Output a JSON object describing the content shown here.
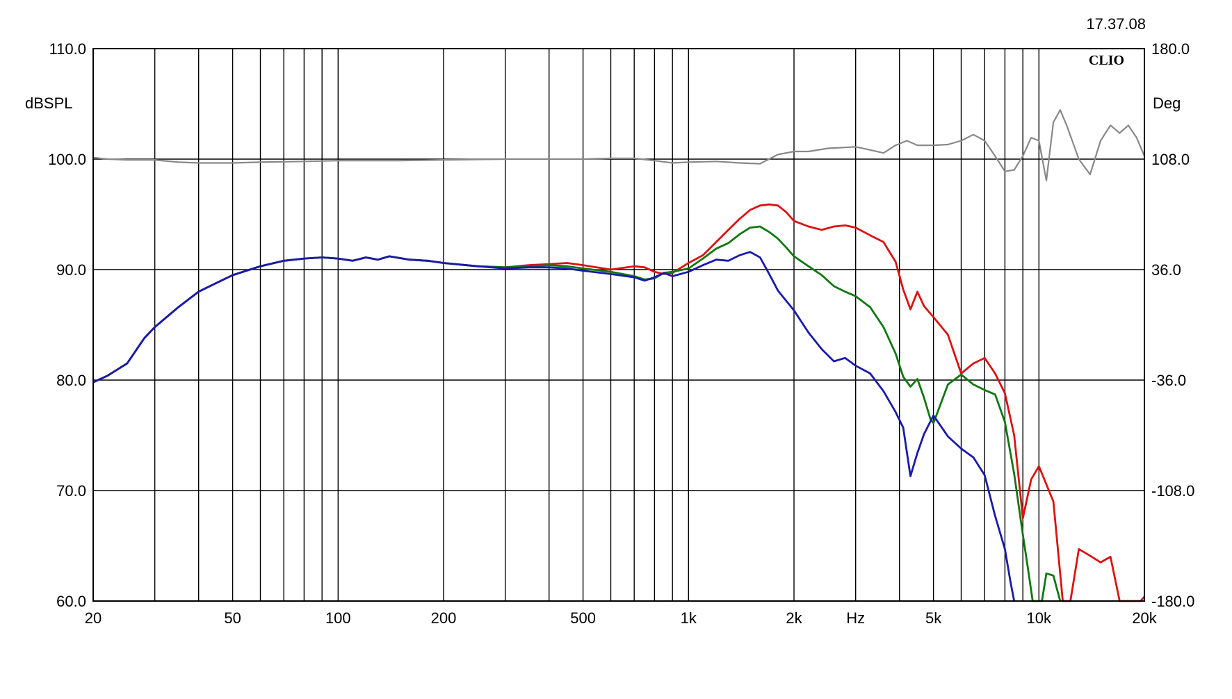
{
  "timestamp": "17.37.08",
  "logo": "CLIO",
  "colors": {
    "background": "#ffffff",
    "grid": "#000000",
    "red": "#dd1111",
    "green": "#117711",
    "blue": "#1a1aaa",
    "phase": "#888888"
  },
  "chart_data": {
    "type": "line",
    "xscale": "log",
    "xlabel": "Hz",
    "ylabel_left": "dBSPL",
    "ylabel_right": "Deg",
    "xlim": [
      20,
      20000
    ],
    "ylim_left": [
      60,
      110
    ],
    "ylim_right": [
      -180,
      180
    ],
    "grid": true,
    "x_ticks": [
      {
        "value": 20,
        "label": "20"
      },
      {
        "value": 50,
        "label": "50"
      },
      {
        "value": 100,
        "label": "100"
      },
      {
        "value": 200,
        "label": "200"
      },
      {
        "value": 500,
        "label": "500"
      },
      {
        "value": 1000,
        "label": "1k"
      },
      {
        "value": 2000,
        "label": "2k"
      },
      {
        "value": 3000,
        "label": "Hz"
      },
      {
        "value": 5000,
        "label": "5k"
      },
      {
        "value": 10000,
        "label": "10k"
      },
      {
        "value": 20000,
        "label": "20k"
      }
    ],
    "x_gridlines": [
      30,
      40,
      50,
      60,
      70,
      80,
      90,
      100,
      200,
      300,
      400,
      500,
      600,
      700,
      800,
      900,
      1000,
      2000,
      3000,
      4000,
      5000,
      6000,
      7000,
      8000,
      9000,
      10000,
      20000
    ],
    "y_ticks_left": [
      "60.0",
      "70.0",
      "80.0",
      "90.0",
      "100.0",
      "110.0"
    ],
    "y_ticks_right": [
      "-180.0",
      "-108.0",
      "-36.0",
      "36.0",
      "108.0",
      "180.0"
    ],
    "series": [
      {
        "color_key": "red",
        "axis": "left",
        "points": [
          [
            20,
            79.8
          ],
          [
            22,
            80.4
          ],
          [
            25,
            81.5
          ],
          [
            28,
            83.8
          ],
          [
            30,
            84.8
          ],
          [
            35,
            86.6
          ],
          [
            40,
            88.0
          ],
          [
            45,
            88.8
          ],
          [
            50,
            89.5
          ],
          [
            60,
            90.3
          ],
          [
            70,
            90.8
          ],
          [
            80,
            91.0
          ],
          [
            90,
            91.1
          ],
          [
            100,
            91.0
          ],
          [
            110,
            90.8
          ],
          [
            120,
            91.1
          ],
          [
            130,
            90.9
          ],
          [
            140,
            91.2
          ],
          [
            160,
            90.9
          ],
          [
            180,
            90.8
          ],
          [
            200,
            90.6
          ],
          [
            250,
            90.3
          ],
          [
            300,
            90.2
          ],
          [
            350,
            90.4
          ],
          [
            400,
            90.5
          ],
          [
            450,
            90.6
          ],
          [
            500,
            90.4
          ],
          [
            600,
            90.0
          ],
          [
            700,
            90.3
          ],
          [
            750,
            90.2
          ],
          [
            800,
            89.8
          ],
          [
            850,
            89.6
          ],
          [
            900,
            89.7
          ],
          [
            1000,
            90.6
          ],
          [
            1100,
            91.3
          ],
          [
            1200,
            92.5
          ],
          [
            1300,
            93.6
          ],
          [
            1400,
            94.6
          ],
          [
            1500,
            95.4
          ],
          [
            1600,
            95.8
          ],
          [
            1700,
            95.9
          ],
          [
            1800,
            95.8
          ],
          [
            1900,
            95.2
          ],
          [
            2000,
            94.4
          ],
          [
            2200,
            93.9
          ],
          [
            2400,
            93.6
          ],
          [
            2600,
            93.9
          ],
          [
            2800,
            94.0
          ],
          [
            3000,
            93.8
          ],
          [
            3300,
            93.1
          ],
          [
            3600,
            92.5
          ],
          [
            3900,
            90.7
          ],
          [
            4100,
            88.2
          ],
          [
            4300,
            86.4
          ],
          [
            4500,
            88.0
          ],
          [
            4700,
            86.7
          ],
          [
            5000,
            85.7
          ],
          [
            5500,
            84.1
          ],
          [
            6000,
            80.6
          ],
          [
            6500,
            81.5
          ],
          [
            7000,
            82.0
          ],
          [
            7500,
            80.6
          ],
          [
            8000,
            78.8
          ],
          [
            8500,
            75.0
          ],
          [
            9000,
            67.5
          ],
          [
            9500,
            71.0
          ],
          [
            10000,
            72.2
          ],
          [
            11000,
            69.0
          ],
          [
            11700,
            60.0
          ],
          [
            12300,
            60.0
          ],
          [
            13000,
            64.7
          ],
          [
            14000,
            64.1
          ],
          [
            15000,
            63.5
          ],
          [
            16000,
            64.0
          ],
          [
            17000,
            60.0
          ],
          [
            19500,
            60.0
          ],
          [
            20000,
            60.4
          ]
        ]
      },
      {
        "color_key": "green",
        "axis": "left",
        "points": [
          [
            20,
            79.8
          ],
          [
            22,
            80.4
          ],
          [
            25,
            81.5
          ],
          [
            28,
            83.8
          ],
          [
            30,
            84.8
          ],
          [
            35,
            86.6
          ],
          [
            40,
            88.0
          ],
          [
            45,
            88.8
          ],
          [
            50,
            89.5
          ],
          [
            60,
            90.3
          ],
          [
            70,
            90.8
          ],
          [
            80,
            91.0
          ],
          [
            90,
            91.1
          ],
          [
            100,
            91.0
          ],
          [
            110,
            90.8
          ],
          [
            120,
            91.1
          ],
          [
            130,
            90.9
          ],
          [
            140,
            91.2
          ],
          [
            160,
            90.9
          ],
          [
            180,
            90.8
          ],
          [
            200,
            90.6
          ],
          [
            250,
            90.3
          ],
          [
            300,
            90.2
          ],
          [
            350,
            90.3
          ],
          [
            400,
            90.4
          ],
          [
            450,
            90.3
          ],
          [
            500,
            90.1
          ],
          [
            600,
            89.8
          ],
          [
            700,
            89.4
          ],
          [
            750,
            89.1
          ],
          [
            800,
            89.2
          ],
          [
            850,
            89.7
          ],
          [
            900,
            89.8
          ],
          [
            1000,
            90.1
          ],
          [
            1100,
            91.0
          ],
          [
            1200,
            91.9
          ],
          [
            1300,
            92.4
          ],
          [
            1400,
            93.2
          ],
          [
            1500,
            93.8
          ],
          [
            1600,
            93.9
          ],
          [
            1700,
            93.4
          ],
          [
            1800,
            92.8
          ],
          [
            1900,
            92.0
          ],
          [
            2000,
            91.2
          ],
          [
            2200,
            90.3
          ],
          [
            2400,
            89.5
          ],
          [
            2600,
            88.5
          ],
          [
            2800,
            88.0
          ],
          [
            3000,
            87.6
          ],
          [
            3300,
            86.6
          ],
          [
            3600,
            84.8
          ],
          [
            3900,
            82.4
          ],
          [
            4100,
            80.3
          ],
          [
            4300,
            79.4
          ],
          [
            4500,
            80.1
          ],
          [
            4700,
            78.4
          ],
          [
            4900,
            76.5
          ],
          [
            5000,
            76.1
          ],
          [
            5500,
            79.6
          ],
          [
            6000,
            80.5
          ],
          [
            6500,
            79.6
          ],
          [
            7000,
            79.1
          ],
          [
            7500,
            78.7
          ],
          [
            8000,
            76.2
          ],
          [
            8500,
            71.5
          ],
          [
            9000,
            66.0
          ],
          [
            9300,
            63.0
          ],
          [
            9600,
            60.0
          ],
          [
            10200,
            60.0
          ],
          [
            10500,
            62.5
          ],
          [
            11000,
            62.3
          ],
          [
            11500,
            60.0
          ]
        ]
      },
      {
        "color_key": "blue",
        "axis": "left",
        "points": [
          [
            20,
            79.8
          ],
          [
            22,
            80.4
          ],
          [
            25,
            81.5
          ],
          [
            28,
            83.8
          ],
          [
            30,
            84.8
          ],
          [
            35,
            86.6
          ],
          [
            40,
            88.0
          ],
          [
            45,
            88.8
          ],
          [
            50,
            89.5
          ],
          [
            60,
            90.3
          ],
          [
            70,
            90.8
          ],
          [
            80,
            91.0
          ],
          [
            90,
            91.1
          ],
          [
            100,
            91.0
          ],
          [
            110,
            90.8
          ],
          [
            120,
            91.1
          ],
          [
            130,
            90.9
          ],
          [
            140,
            91.2
          ],
          [
            160,
            90.9
          ],
          [
            180,
            90.8
          ],
          [
            200,
            90.6
          ],
          [
            250,
            90.3
          ],
          [
            300,
            90.1
          ],
          [
            350,
            90.2
          ],
          [
            400,
            90.2
          ],
          [
            450,
            90.1
          ],
          [
            500,
            89.9
          ],
          [
            600,
            89.6
          ],
          [
            700,
            89.3
          ],
          [
            750,
            89.0
          ],
          [
            800,
            89.3
          ],
          [
            850,
            89.7
          ],
          [
            900,
            89.4
          ],
          [
            1000,
            89.8
          ],
          [
            1100,
            90.4
          ],
          [
            1200,
            90.9
          ],
          [
            1300,
            90.8
          ],
          [
            1400,
            91.3
          ],
          [
            1500,
            91.6
          ],
          [
            1600,
            91.1
          ],
          [
            1700,
            89.6
          ],
          [
            1800,
            88.1
          ],
          [
            2000,
            86.3
          ],
          [
            2200,
            84.3
          ],
          [
            2400,
            82.8
          ],
          [
            2600,
            81.7
          ],
          [
            2800,
            82.0
          ],
          [
            3000,
            81.3
          ],
          [
            3300,
            80.6
          ],
          [
            3600,
            79.0
          ],
          [
            3900,
            77.1
          ],
          [
            4100,
            75.7
          ],
          [
            4300,
            71.3
          ],
          [
            4500,
            73.4
          ],
          [
            4700,
            75.1
          ],
          [
            5000,
            76.8
          ],
          [
            5500,
            74.9
          ],
          [
            6000,
            73.8
          ],
          [
            6500,
            73.0
          ],
          [
            7000,
            71.4
          ],
          [
            7500,
            67.7
          ],
          [
            8000,
            64.7
          ],
          [
            8300,
            61.7
          ],
          [
            8500,
            60.0
          ]
        ]
      },
      {
        "color_key": "phase",
        "axis": "right",
        "points": [
          [
            20,
            109.0
          ],
          [
            22,
            108.0
          ],
          [
            25,
            107.5
          ],
          [
            30,
            107.5
          ],
          [
            35,
            106.0
          ],
          [
            40,
            105.5
          ],
          [
            50,
            105.5
          ],
          [
            60,
            106.0
          ],
          [
            80,
            106.5
          ],
          [
            100,
            107.0
          ],
          [
            150,
            107.0
          ],
          [
            200,
            107.5
          ],
          [
            300,
            108.0
          ],
          [
            400,
            108.0
          ],
          [
            500,
            108.0
          ],
          [
            600,
            108.5
          ],
          [
            700,
            108.5
          ],
          [
            800,
            107.0
          ],
          [
            900,
            105.5
          ],
          [
            1000,
            106.0
          ],
          [
            1200,
            106.5
          ],
          [
            1400,
            105.5
          ],
          [
            1600,
            105.0
          ],
          [
            1800,
            111.0
          ],
          [
            2000,
            113.0
          ],
          [
            2200,
            113.0
          ],
          [
            2500,
            115.0
          ],
          [
            3000,
            116.0
          ],
          [
            3300,
            114.0
          ],
          [
            3600,
            112.0
          ],
          [
            3900,
            117.0
          ],
          [
            4200,
            120.0
          ],
          [
            4500,
            117.0
          ],
          [
            5000,
            117.0
          ],
          [
            5500,
            117.5
          ],
          [
            6000,
            120.0
          ],
          [
            6500,
            124.0
          ],
          [
            7000,
            120.0
          ],
          [
            7500,
            110.0
          ],
          [
            8000,
            100.0
          ],
          [
            8500,
            101.0
          ],
          [
            9000,
            110.0
          ],
          [
            9500,
            122.0
          ],
          [
            10000,
            120.0
          ],
          [
            10500,
            94.0
          ],
          [
            11000,
            132.0
          ],
          [
            11500,
            140.0
          ],
          [
            12000,
            130.0
          ],
          [
            13000,
            108.0
          ],
          [
            14000,
            98.0
          ],
          [
            15000,
            120.0
          ],
          [
            16000,
            130.0
          ],
          [
            17000,
            125.0
          ],
          [
            18000,
            130.0
          ],
          [
            19000,
            122.0
          ],
          [
            20000,
            110.0
          ]
        ]
      }
    ]
  }
}
